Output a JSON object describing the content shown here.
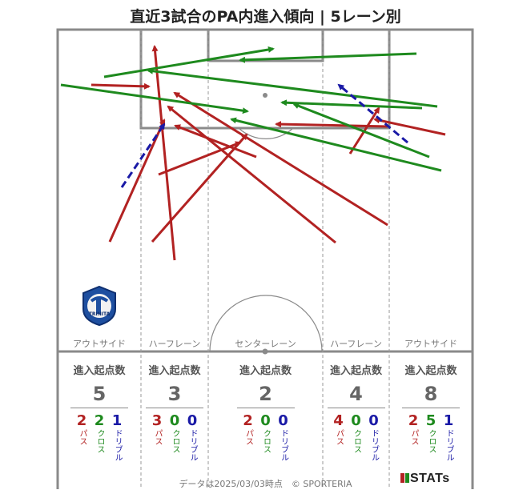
{
  "title": "直近3試合のPA内進入傾向 | 5レーン別",
  "colors": {
    "pass": "#b22222",
    "cross": "#1e8a1e",
    "dribble": "#1a1aa6",
    "line": "#8a8a8a"
  },
  "lanes": [
    {
      "label": "アウトサイド",
      "header": "進入起点数",
      "total": "5",
      "pass": "2",
      "cross": "2",
      "dribble": "1"
    },
    {
      "label": "ハーフレーン",
      "header": "進入起点数",
      "total": "3",
      "pass": "3",
      "cross": "0",
      "dribble": "0"
    },
    {
      "label": "センターレーン",
      "header": "進入起点数",
      "total": "2",
      "pass": "2",
      "cross": "0",
      "dribble": "0"
    },
    {
      "label": "ハーフレーン",
      "header": "進入起点数",
      "total": "4",
      "pass": "4",
      "cross": "0",
      "dribble": "0"
    },
    {
      "label": "アウトサイド",
      "header": "進入起点数",
      "total": "8",
      "pass": "2",
      "cross": "5",
      "dribble": "1"
    }
  ],
  "legend_labels": {
    "pass": "パス",
    "cross": "クロス",
    "dribble": "ドリブル"
  },
  "emblem_text": "TRINITA",
  "footer": "データは2025/03/03時点　© SPORTERIA",
  "brand": "STATs"
}
